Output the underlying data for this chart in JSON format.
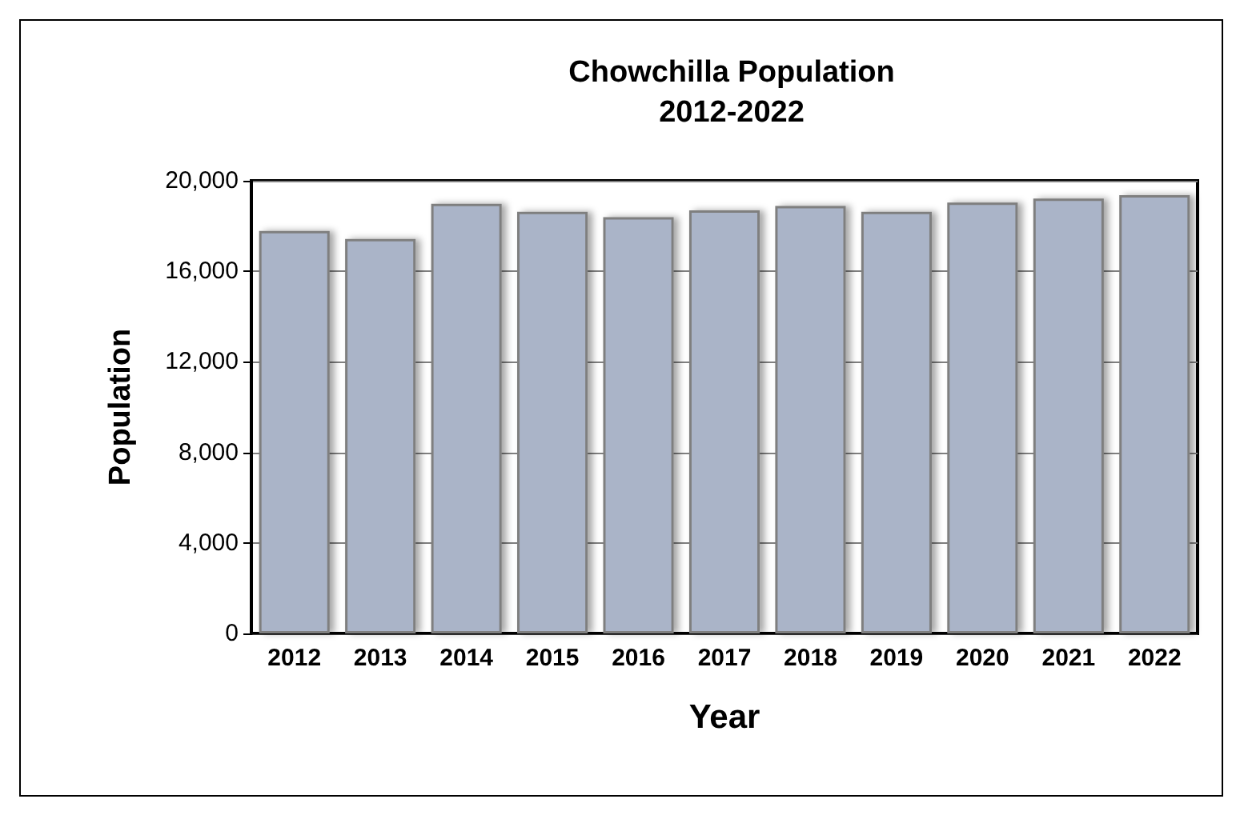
{
  "chart_data": {
    "type": "bar",
    "title": "Chowchilla Population\n2012-2022",
    "xlabel": "Year",
    "ylabel": "Population",
    "categories": [
      "2012",
      "2013",
      "2014",
      "2015",
      "2016",
      "2017",
      "2018",
      "2019",
      "2020",
      "2021",
      "2022"
    ],
    "values": [
      17780,
      17430,
      18980,
      18630,
      18390,
      18690,
      18890,
      18630,
      19040,
      19210,
      19360
    ],
    "color": "#aab4c8",
    "ylim": [
      0,
      20000
    ],
    "yticks": [
      {
        "value": 0,
        "label": "0"
      },
      {
        "value": 4000,
        "label": "4,000"
      },
      {
        "value": 8000,
        "label": "8,000"
      },
      {
        "value": 12000,
        "label": "12,000"
      },
      {
        "value": 16000,
        "label": "16,000"
      },
      {
        "value": 20000,
        "label": "20,000"
      }
    ],
    "grid": "y"
  }
}
